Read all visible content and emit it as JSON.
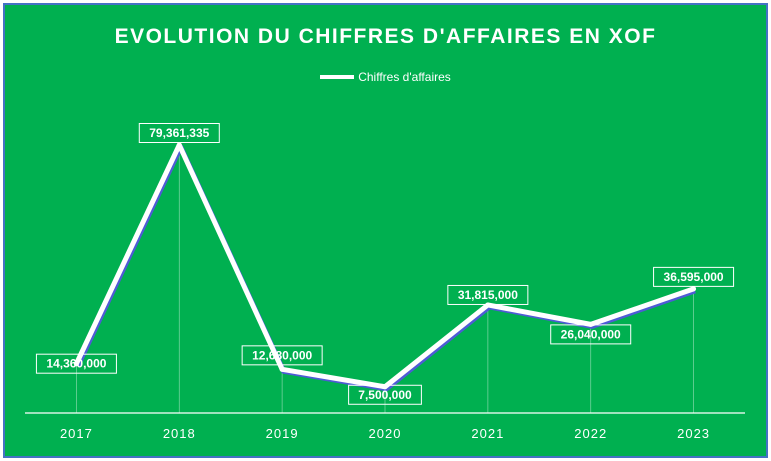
{
  "chart_data": {
    "type": "line",
    "title": "EVOLUTION DU CHIFFRES D'AFFAIRES EN XOF",
    "xlabel": "",
    "ylabel": "",
    "categories": [
      "2017",
      "2018",
      "2019",
      "2020",
      "2021",
      "2022",
      "2023"
    ],
    "series": [
      {
        "name": "Chiffres d'affaires",
        "values": [
          14360000,
          79361335,
          12680000,
          7500000,
          31815000,
          26040000,
          36595000
        ],
        "labels": [
          "14,360,000",
          "79,361,335",
          "12,680,000",
          "7,500,000",
          "31,815,000",
          "26,040,000",
          "36,595,000"
        ]
      }
    ],
    "ylim": [
      0,
      85000000
    ],
    "grid": false,
    "legend_position": "top",
    "colors": {
      "background": "#00b050",
      "border": "#4472c4",
      "line": "#ffffff",
      "line_shadow": "#4f5bd5",
      "text": "#ffffff"
    }
  }
}
